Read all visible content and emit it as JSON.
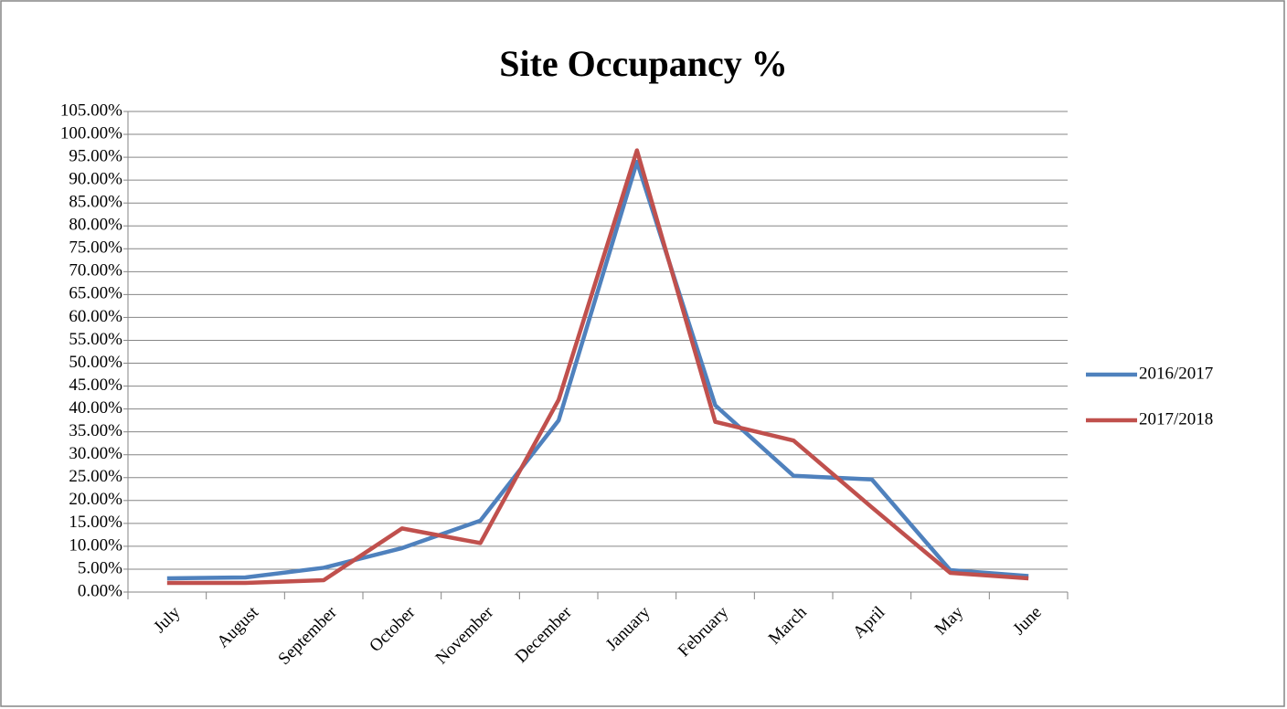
{
  "chart_data": {
    "type": "line",
    "title": "Site Occupancy %",
    "categories": [
      "July",
      "August",
      "September",
      "October",
      "November",
      "December",
      "January",
      "February",
      "March",
      "April",
      "May",
      "June"
    ],
    "series": [
      {
        "name": "2016/2017",
        "color": "#4f81bd",
        "values": [
          3.0,
          3.2,
          5.3,
          9.6,
          15.6,
          37.5,
          94.0,
          40.8,
          25.4,
          24.6,
          4.8,
          3.5
        ]
      },
      {
        "name": "2017/2018",
        "color": "#c0504d",
        "values": [
          2.0,
          2.0,
          2.6,
          13.9,
          10.7,
          42.0,
          96.5,
          37.2,
          33.1,
          18.5,
          4.2,
          3.0
        ]
      }
    ],
    "ylim": [
      0,
      105
    ],
    "yticks": [
      {
        "value": 0,
        "label": "0.00%"
      },
      {
        "value": 5,
        "label": "5.00%"
      },
      {
        "value": 10,
        "label": "10.00%"
      },
      {
        "value": 15,
        "label": "15.00%"
      },
      {
        "value": 20,
        "label": "20.00%"
      },
      {
        "value": 25,
        "label": "25.00%"
      },
      {
        "value": 30,
        "label": "30.00%"
      },
      {
        "value": 35,
        "label": "35.00%"
      },
      {
        "value": 40,
        "label": "40.00%"
      },
      {
        "value": 45,
        "label": "45.00%"
      },
      {
        "value": 50,
        "label": "50.00%"
      },
      {
        "value": 55,
        "label": "55.00%"
      },
      {
        "value": 60,
        "label": "60.00%"
      },
      {
        "value": 65,
        "label": "65.00%"
      },
      {
        "value": 70,
        "label": "70.00%"
      },
      {
        "value": 75,
        "label": "75.00%"
      },
      {
        "value": 80,
        "label": "80.00%"
      },
      {
        "value": 85,
        "label": "85.00%"
      },
      {
        "value": 90,
        "label": "90.00%"
      },
      {
        "value": 95,
        "label": "95.00%"
      },
      {
        "value": 100,
        "label": "100.00%"
      },
      {
        "value": 105,
        "label": "105.00%"
      }
    ],
    "grid": true,
    "legend": "right"
  }
}
